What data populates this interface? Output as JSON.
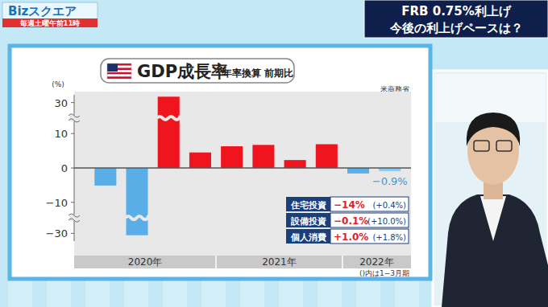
{
  "program": {
    "name": "Bizスクエア",
    "schedule": "毎週土曜午前11時"
  },
  "headline": [
    "FRB 0.75%利上げ",
    "今後の利上げペースは？"
  ],
  "chart_data": {
    "type": "bar",
    "title": "GDP成長率",
    "subtitle": "年率換算 前期比",
    "source": "米商務省",
    "y_label": "(%)",
    "categories": [
      null,
      null,
      null,
      null,
      null,
      null,
      null,
      null,
      null,
      null
    ],
    "year_groups": [
      {
        "label": "2020年",
        "start": 0,
        "end": 3
      },
      {
        "label": "2021年",
        "start": 4,
        "end": 7
      },
      {
        "label": "2022年",
        "start": 8,
        "end": 9
      }
    ],
    "values": [
      -5.1,
      -31.2,
      33.8,
      4.5,
      6.3,
      6.7,
      2.3,
      6.9,
      -1.6,
      -0.9
    ],
    "colors": [
      "#5aaee8",
      "#5aaee8",
      "#f0141e",
      "#f0141e",
      "#f0141e",
      "#f0141e",
      "#f0141e",
      "#f0141e",
      "#5aaee8",
      "#8cc8f0"
    ],
    "value_labels": [
      null,
      null,
      null,
      null,
      null,
      null,
      null,
      null,
      null,
      "−0.9%"
    ],
    "ylim": [
      -35,
      35
    ],
    "yticks": [
      {
        "value": -30,
        "label": "−30"
      },
      {
        "value": -10,
        "label": "−10"
      },
      0,
      10,
      30
    ],
    "y_breaks": [
      [
        -30,
        -10
      ],
      [
        10,
        30
      ]
    ],
    "grid": false,
    "breakdown": [
      {
        "label": "住宅投資",
        "value": "−14%",
        "prior": "(+0.4%)"
      },
      {
        "label": "設備投資",
        "value": "−0.1%",
        "prior": "(+10.0%)"
      },
      {
        "label": "個人消費",
        "value": "+1.0%",
        "prior": "(+1.8%)"
      }
    ],
    "note": "()内は1−3月期"
  }
}
